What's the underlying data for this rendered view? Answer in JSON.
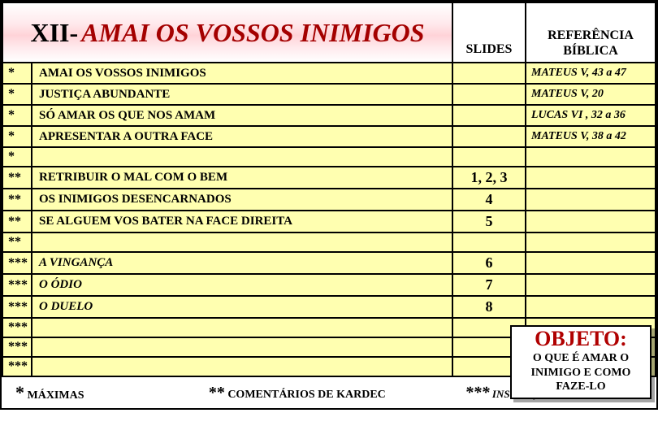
{
  "header": {
    "roman": "XII-",
    "title": "AMAI OS VOSSOS INIMIGOS",
    "slides_label": "SLIDES",
    "ref_label": "REFERÊNCIA BÍBLICA"
  },
  "rows": [
    {
      "mark": "*",
      "topic": "AMAI OS VOSSOS INIMIGOS",
      "slides": "",
      "ref": "MATEUS V, 43 a 47",
      "italic": false
    },
    {
      "mark": "*",
      "topic": "JUSTIÇA ABUNDANTE",
      "slides": "",
      "ref": "MATEUS V, 20",
      "italic": false
    },
    {
      "mark": "*",
      "topic": "SÓ AMAR OS QUE NOS AMAM",
      "slides": "",
      "ref": "LUCAS VI , 32 a 36",
      "italic": false
    },
    {
      "mark": "*",
      "topic": "APRESENTAR A OUTRA FACE",
      "slides": "",
      "ref": "MATEUS V, 38  a 42",
      "italic": false
    },
    {
      "mark": "*",
      "topic": "",
      "slides": "",
      "ref": "",
      "italic": false,
      "empty": true
    },
    {
      "mark": "**",
      "topic": "RETRIBUIR O MAL COM O BEM",
      "slides": "1, 2, 3",
      "ref": "",
      "italic": false
    },
    {
      "mark": "**",
      "topic": "OS INIMIGOS  DESENCARNADOS",
      "slides": "4",
      "ref": "",
      "italic": false
    },
    {
      "mark": "**",
      "topic": "SE ALGUEM VOS BATER NA FACE DIREITA",
      "slides": "5",
      "ref": "",
      "italic": false
    },
    {
      "mark": "**",
      "topic": "",
      "slides": "",
      "ref": "",
      "italic": false,
      "empty": true
    },
    {
      "mark": "***",
      "topic": "A VINGANÇA",
      "slides": "6",
      "ref": "",
      "italic": true
    },
    {
      "mark": "***",
      "topic": "O ÓDIO",
      "slides": "7",
      "ref": "",
      "italic": true
    },
    {
      "mark": "***",
      "topic": "O DUELO",
      "slides": "8",
      "ref": "",
      "italic": true
    },
    {
      "mark": "***",
      "topic": "",
      "slides": "",
      "ref": "",
      "italic": false,
      "empty": true
    },
    {
      "mark": "***",
      "topic": "",
      "slides": "",
      "ref": "",
      "italic": false,
      "empty": true
    },
    {
      "mark": "***",
      "topic": "",
      "slides": "",
      "ref": "",
      "italic": false,
      "empty": true
    }
  ],
  "footer": {
    "f1_star": "*",
    "f1_text": "MÁXIMAS",
    "f2_star": "**",
    "f2_text": "COMENTÁRIOS DE KARDEC",
    "f3_star": "***",
    "f3_text": "INSTRUÇÕES DOS ESPÍRITOS"
  },
  "objeto": {
    "title": "OBJETO:",
    "body": "O QUE É AMAR O INIMIGO E COMO FAZE-LO"
  },
  "colors": {
    "row_bg": "#ffffb0",
    "title_color": "#a40000",
    "objeto_title_color": "#b00000"
  }
}
